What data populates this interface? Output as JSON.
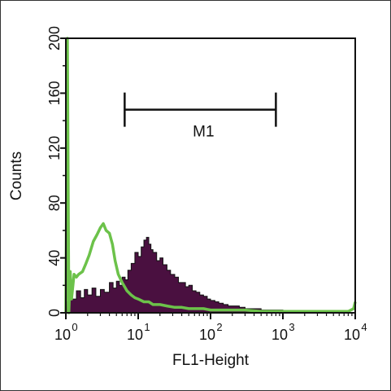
{
  "chart_data": {
    "type": "area",
    "xlabel": "FL1-Height",
    "ylabel": "Counts",
    "x_scale": "log",
    "xlim": [
      1,
      10000
    ],
    "ylim": [
      0,
      200
    ],
    "x_ticks": [
      {
        "base": "10",
        "exp": "0"
      },
      {
        "base": "10",
        "exp": "1"
      },
      {
        "base": "10",
        "exp": "2"
      },
      {
        "base": "10",
        "exp": "3"
      },
      {
        "base": "10",
        "exp": "4"
      }
    ],
    "y_ticks": [
      "0",
      "40",
      "80",
      "120",
      "160",
      "200"
    ],
    "y_tick_values": [
      0,
      40,
      80,
      120,
      160,
      200
    ],
    "marker": {
      "label": "M1",
      "x_range": [
        6.5,
        800
      ],
      "y": 148
    },
    "colors": {
      "filled_histogram": "#4a1040",
      "open_histogram": "#6cc24a"
    },
    "series": [
      {
        "style": "filled",
        "x": [
          1,
          1.1,
          1.2,
          1.4,
          1.6,
          1.8,
          2,
          2.3,
          2.6,
          3,
          3.4,
          4,
          4.5,
          5,
          5.5,
          6,
          6.6,
          7.2,
          8,
          9,
          10,
          11,
          12,
          13,
          14,
          15,
          16,
          18,
          20,
          22,
          25,
          28,
          32,
          36,
          40,
          45,
          50,
          56,
          63,
          71,
          80,
          90,
          100,
          115,
          130,
          150,
          175,
          200,
          250,
          300,
          400,
          500,
          700,
          1000,
          1500,
          2000,
          3000,
          5000,
          7000,
          10000
        ],
        "y": [
          8,
          15,
          10,
          16,
          11,
          17,
          13,
          18,
          12,
          17,
          15,
          22,
          18,
          23,
          20,
          26,
          24,
          31,
          36,
          44,
          41,
          48,
          53,
          55,
          50,
          46,
          44,
          38,
          40,
          35,
          31,
          28,
          26,
          22,
          22,
          19,
          20,
          16,
          15,
          13,
          12,
          10,
          9,
          8,
          7,
          6,
          5,
          5,
          4,
          3,
          3,
          2,
          2,
          1,
          1,
          1,
          1,
          0,
          0,
          0
        ]
      },
      {
        "style": "outline",
        "x": [
          1,
          1.05,
          1.1,
          1.15,
          1.2,
          1.3,
          1.4,
          1.5,
          1.7,
          1.9,
          2.1,
          2.4,
          2.7,
          3,
          3.3,
          3.6,
          4,
          4.4,
          4.8,
          5.3,
          6,
          7,
          8,
          9,
          10,
          12,
          14,
          16,
          20,
          25,
          32,
          40,
          50,
          63,
          80,
          100,
          130,
          160,
          200,
          300,
          500,
          1000,
          2000,
          5000,
          8000,
          9500,
          10000
        ],
        "y": [
          0,
          200,
          0,
          30,
          10,
          28,
          26,
          28,
          30,
          36,
          42,
          52,
          57,
          62,
          65,
          60,
          58,
          50,
          38,
          28,
          22,
          16,
          13,
          11,
          10,
          8,
          8,
          6,
          6,
          5,
          4,
          4,
          3,
          3,
          3,
          2,
          2,
          2,
          2,
          2,
          1,
          1,
          1,
          1,
          1,
          3,
          8
        ]
      }
    ]
  }
}
